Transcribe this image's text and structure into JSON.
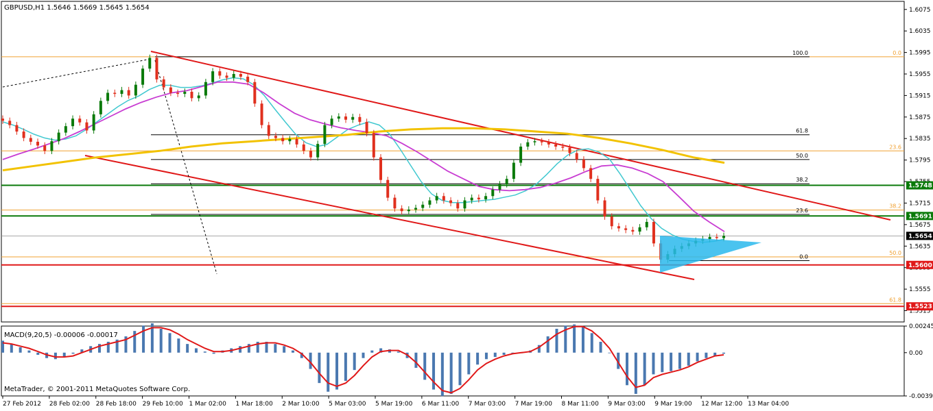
{
  "header": {
    "symbol_info": "GBPUSD,H1  1.5646 1.5669 1.5645 1.5654"
  },
  "footer": {
    "copyright": "MetaTrader, © 2001-2011 MetaQuotes Software Corp."
  },
  "colors": {
    "background": "#ffffff",
    "axis": "#000000",
    "candle_up": "#0a7a0a",
    "candle_down": "#e0301e",
    "ma_fast": "#40c8d0",
    "ma_mid": "#c83cd2",
    "ma_slow": "#f2c200",
    "channel": "#e01818",
    "support_resistance_green": "#0a7a0a",
    "support_red": "#e01818",
    "fib": "#f0a030",
    "triangle": "#2ab8ec",
    "macd_hist": "#4a78b0",
    "macd_signal": "#e01818",
    "label_bg_green": "#0a7a0a",
    "label_bg_red": "#e01818"
  },
  "chart_data": [
    {
      "type": "line",
      "title": "GBPUSD,H1",
      "ylim": [
        1.5494,
        1.609
      ],
      "y_ticks": [
        "1.6075",
        "1.6035",
        "1.5995",
        "1.5955",
        "1.5915",
        "1.5875",
        "1.5835",
        "1.5795",
        "1.5755",
        "1.5715",
        "1.5675",
        "1.5635",
        "1.5595",
        "1.5555",
        "1.5515"
      ],
      "x_tick_labels": [
        "27 Feb 2012",
        "28 Feb 02:00",
        "28 Feb 18:00",
        "29 Feb 10:00",
        "1 Mar 02:00",
        "1 Mar 18:00",
        "2 Mar 10:00",
        "5 Mar 03:00",
        "5 Mar 19:00",
        "6 Mar 11:00",
        "7 Mar 03:00",
        "7 Mar 19:00",
        "8 Mar 11:00",
        "9 Mar 03:00",
        "9 Mar 19:00",
        "12 Mar 12:00",
        "13 Mar 04:00"
      ],
      "price_labels": [
        {
          "value": 1.5748,
          "text": "1.5748",
          "style": "green"
        },
        {
          "value": 1.5691,
          "text": "1.5691",
          "style": "green"
        },
        {
          "value": 1.5654,
          "text": "1.5654",
          "style": "current"
        },
        {
          "value": 1.56,
          "text": "1.5600",
          "style": "red"
        },
        {
          "value": 1.5523,
          "text": "1.5523",
          "style": "red"
        }
      ],
      "horizontal_lines": [
        {
          "value": 1.5748,
          "kind": "green"
        },
        {
          "value": 1.5691,
          "kind": "green"
        },
        {
          "value": 1.56,
          "kind": "red"
        },
        {
          "value": 1.5523,
          "kind": "red"
        }
      ],
      "fib_retracement_inner": [
        {
          "level": "100.0",
          "price": 1.5987
        },
        {
          "level": "61.8",
          "price": 1.5842
        },
        {
          "level": "50.0",
          "price": 1.5796
        },
        {
          "level": "38.2",
          "price": 1.5751
        },
        {
          "level": "23.6",
          "price": 1.5694
        },
        {
          "level": "0.0",
          "price": 1.5608
        }
      ],
      "fib_retracement_outer": [
        {
          "level": "0.0",
          "price": 1.5987
        },
        {
          "level": "23.6",
          "price": 1.5812
        },
        {
          "level": "38.2",
          "price": 1.5702
        },
        {
          "level": "50.0",
          "price": 1.5615
        },
        {
          "level": "61.8",
          "price": 1.5528
        }
      ],
      "ohlc_close_path": [
        1.5868,
        1.586,
        1.5848,
        1.5836,
        1.5829,
        1.5822,
        1.5812,
        1.583,
        1.5846,
        1.5858,
        1.5872,
        1.5865,
        1.585,
        1.588,
        1.5905,
        1.592,
        1.5918,
        1.5925,
        1.5915,
        1.5935,
        1.5965,
        1.5985,
        1.5945,
        1.593,
        1.592,
        1.5918,
        1.5922,
        1.591,
        1.5915,
        1.594,
        1.596,
        1.5952,
        1.5948,
        1.5955,
        1.595,
        1.594,
        1.59,
        1.586,
        1.584,
        1.5836,
        1.583,
        1.5834,
        1.5824,
        1.5812,
        1.58,
        1.5825,
        1.586,
        1.5872,
        1.5876,
        1.587,
        1.5875,
        1.5866,
        1.5845,
        1.58,
        1.5758,
        1.5725,
        1.5705,
        1.57,
        1.5703,
        1.5706,
        1.5712,
        1.572,
        1.5728,
        1.572,
        1.5715,
        1.5705,
        1.572,
        1.5725,
        1.5722,
        1.5728,
        1.574,
        1.575,
        1.576,
        1.579,
        1.582,
        1.5828,
        1.583,
        1.5828,
        1.5824,
        1.582,
        1.5818,
        1.5808,
        1.5796,
        1.578,
        1.576,
        1.572,
        1.569,
        1.5672,
        1.5668,
        1.5665,
        1.5662,
        1.567,
        1.568,
        1.564,
        1.561,
        1.562,
        1.563,
        1.5635,
        1.564,
        1.5645,
        1.5648,
        1.5652,
        1.565,
        1.5654
      ],
      "moving_averages": [
        {
          "name": "ma_fast",
          "values": [
            1.5866,
            1.586,
            1.5852,
            1.5843,
            1.5836,
            1.5832,
            1.5834,
            1.584,
            1.5852,
            1.5866,
            1.588,
            1.5894,
            1.5906,
            1.5914,
            1.5926,
            1.5934,
            1.5934,
            1.593,
            1.593,
            1.5933,
            1.5938,
            1.5944,
            1.5948,
            1.5946,
            1.5935,
            1.5915,
            1.589,
            1.5866,
            1.5843,
            1.5827,
            1.582,
            1.5824,
            1.5838,
            1.5852,
            1.586,
            1.5866,
            1.586,
            1.5843,
            1.5815,
            1.5785,
            1.5755,
            1.5732,
            1.572,
            1.5716,
            1.5716,
            1.5718,
            1.572,
            1.5722,
            1.5726,
            1.573,
            1.5738,
            1.575,
            1.5768,
            1.5788,
            1.5804,
            1.5814,
            1.5816,
            1.581,
            1.5797,
            1.577,
            1.574,
            1.571,
            1.5686,
            1.5668,
            1.5656,
            1.5648,
            1.5644,
            1.5642,
            1.5644,
            1.5648
          ]
        },
        {
          "name": "ma_mid",
          "values": [
            1.5796,
            1.5806,
            1.5815,
            1.5825,
            1.5835,
            1.5848,
            1.5862,
            1.5876,
            1.589,
            1.5902,
            1.5912,
            1.592,
            1.5924,
            1.5932,
            1.594,
            1.594,
            1.5936,
            1.592,
            1.59,
            1.5882,
            1.587,
            1.5862,
            1.5855,
            1.585,
            1.5846,
            1.584,
            1.5826,
            1.581,
            1.5792,
            1.5774,
            1.576,
            1.5746,
            1.574,
            1.5738,
            1.574,
            1.5744,
            1.5752,
            1.5762,
            1.5774,
            1.5784,
            1.5786,
            1.578,
            1.577,
            1.5755,
            1.5728,
            1.57,
            1.568,
            1.5662
          ]
        },
        {
          "name": "ma_slow",
          "values": [
            1.5776,
            1.5784,
            1.5792,
            1.58,
            1.5806,
            1.5812,
            1.582,
            1.5826,
            1.583,
            1.5834,
            1.5838,
            1.5842,
            1.5848,
            1.5852,
            1.5854,
            1.5854,
            1.5852,
            1.5848,
            1.5844,
            1.5836,
            1.5826,
            1.5814,
            1.58,
            1.579
          ]
        }
      ]
    },
    {
      "type": "bar",
      "title": "MACD(9,20,5) -0.00006 -0.00017",
      "ylim": [
        -0.00399,
        0.00245
      ],
      "y_ticks": [
        "0.00245",
        "0.00",
        "-0.00399"
      ],
      "histogram": [
        0.0011,
        0.0008,
        0.0005,
        0.0002,
        -0.0002,
        -0.0005,
        -0.0006,
        -0.0004,
        -0.0001,
        0.0003,
        0.0006,
        0.0008,
        0.001,
        0.0012,
        0.0015,
        0.002,
        0.0025,
        0.0027,
        0.0022,
        0.0018,
        0.0013,
        0.0008,
        0.0004,
        0.0001,
        -0.0001,
        0.0002,
        0.0004,
        0.0006,
        0.0008,
        0.001,
        0.001,
        0.0008,
        0.0006,
        0.0002,
        -0.0005,
        -0.0015,
        -0.0028,
        -0.0036,
        -0.0034,
        -0.0026,
        -0.0016,
        -0.0005,
        0.0002,
        0.0004,
        0.0003,
        0.0001,
        -0.0005,
        -0.0014,
        -0.0025,
        -0.0034,
        -0.004,
        -0.0038,
        -0.003,
        -0.002,
        -0.0011,
        -0.0006,
        -0.0004,
        -0.0002,
        -0.0001,
        0.0,
        0.0002,
        0.0007,
        0.0015,
        0.0022,
        0.0025,
        0.0026,
        0.0024,
        0.0018,
        0.001,
        0.0,
        -0.0015,
        -0.003,
        -0.0038,
        -0.003,
        -0.002,
        -0.0018,
        -0.0017,
        -0.0015,
        -0.0012,
        -0.0008,
        -0.0005,
        -0.0003,
        -0.0001
      ],
      "signal": [
        0.0009,
        0.0008,
        0.0006,
        0.0004,
        0.0001,
        -0.0002,
        -0.0004,
        -0.0004,
        -0.0003,
        0.0,
        0.0003,
        0.0006,
        0.0008,
        0.001,
        0.0012,
        0.0016,
        0.002,
        0.0023,
        0.0023,
        0.0021,
        0.0017,
        0.0012,
        0.0008,
        0.0004,
        0.0001,
        0.0001,
        0.0002,
        0.0004,
        0.0006,
        0.0008,
        0.0009,
        0.0009,
        0.0007,
        0.0004,
        -0.0001,
        -0.0009,
        -0.0019,
        -0.0028,
        -0.0031,
        -0.0028,
        -0.0021,
        -0.0012,
        -0.0004,
        0.0001,
        0.0002,
        0.0002,
        -0.0002,
        -0.0009,
        -0.0018,
        -0.0027,
        -0.0035,
        -0.0037,
        -0.0033,
        -0.0025,
        -0.0016,
        -0.001,
        -0.0006,
        -0.0003,
        -0.0001,
        0.0,
        0.0001,
        0.0005,
        0.0011,
        0.0017,
        0.0021,
        0.0024,
        0.0024,
        0.002,
        0.0013,
        0.0004,
        -0.0009,
        -0.0022,
        -0.0032,
        -0.003,
        -0.0023,
        -0.002,
        -0.0018,
        -0.0016,
        -0.0013,
        -0.0009,
        -0.0006,
        -0.0003,
        -0.0002
      ]
    }
  ]
}
